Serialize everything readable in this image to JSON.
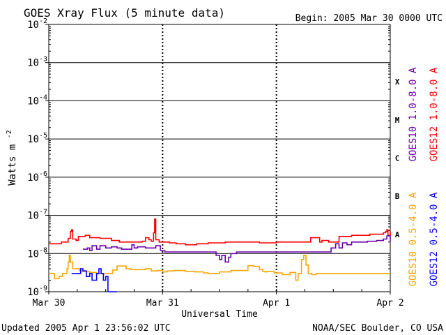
{
  "chart_data": {
    "type": "line",
    "title": "GOES Xray Flux (5 minute data)",
    "begin_label": "Begin:  2005 Mar 30 0000 UTC",
    "xlabel": "Universal Time",
    "ylabel": "Watts m",
    "ylabel_superscript": "-2",
    "x_ticks": [
      "Mar 30",
      "Mar 31",
      "Apr 1",
      "Apr 2"
    ],
    "x_unit": "day",
    "xlim": [
      0,
      3
    ],
    "y_scale": "log",
    "ylim": [
      1e-09,
      0.01
    ],
    "y_tick_mantissa": "10",
    "y_tick_exponents": [
      "-9",
      "-8",
      "-7",
      "-6",
      "-5",
      "-4",
      "-3",
      "-2"
    ],
    "flare_classes": [
      {
        "label": "X",
        "value": 0.0001
      },
      {
        "label": "M",
        "value": 1e-05
      },
      {
        "label": "C",
        "value": 1e-06
      },
      {
        "label": "B",
        "value": 1e-07
      },
      {
        "label": "A",
        "value": 1e-08
      }
    ],
    "grid": true,
    "legend_placement": "right",
    "series": [
      {
        "name": "GOES12 1.0-8.0 A",
        "color": "#ff0000",
        "points": [
          [
            0,
            1.8e-08
          ],
          [
            0.09,
            1.8e-08
          ],
          [
            0.11,
            2e-08
          ],
          [
            0.16,
            2e-08
          ],
          [
            0.17,
            2.5e-08
          ],
          [
            0.19,
            3.8e-08
          ],
          [
            0.2,
            4.2e-08
          ],
          [
            0.21,
            2.4e-08
          ],
          [
            0.24,
            2.2e-08
          ],
          [
            0.26,
            2.8e-08
          ],
          [
            0.3,
            2.8e-08
          ],
          [
            0.32,
            3e-08
          ],
          [
            0.36,
            2.6e-08
          ],
          [
            0.4,
            2.6e-08
          ],
          [
            0.45,
            2.5e-08
          ],
          [
            0.55,
            2.2e-08
          ],
          [
            0.62,
            2e-08
          ],
          [
            0.7,
            2e-08
          ],
          [
            0.78,
            2e-08
          ],
          [
            0.82,
            2.1e-08
          ],
          [
            0.85,
            2.6e-08
          ],
          [
            0.88,
            2.3e-08
          ],
          [
            0.9,
            2.1e-08
          ],
          [
            0.92,
            3.5e-08
          ],
          [
            0.93,
            8e-08
          ],
          [
            0.94,
            2.3e-08
          ],
          [
            0.97,
            2e-08
          ],
          [
            1.02,
            2e-08
          ],
          [
            1.06,
            1.9e-08
          ],
          [
            1.12,
            1.8e-08
          ],
          [
            1.2,
            1.7e-08
          ],
          [
            1.3,
            1.8e-08
          ],
          [
            1.4,
            1.9e-08
          ],
          [
            1.55,
            2e-08
          ],
          [
            1.7,
            2e-08
          ],
          [
            1.85,
            1.9e-08
          ],
          [
            2.0,
            2e-08
          ],
          [
            2.1,
            2e-08
          ],
          [
            2.2,
            2e-08
          ],
          [
            2.27,
            2e-08
          ],
          [
            2.3,
            2.6e-08
          ],
          [
            2.36,
            2.6e-08
          ],
          [
            2.38,
            2e-08
          ],
          [
            2.4,
            2.2e-08
          ],
          [
            2.44,
            2.2e-08
          ],
          [
            2.46,
            2e-08
          ],
          [
            2.55,
            2.8e-08
          ],
          [
            2.62,
            2.8e-08
          ],
          [
            2.66,
            3e-08
          ],
          [
            2.75,
            3e-08
          ],
          [
            2.82,
            3.2e-08
          ],
          [
            2.9,
            3.2e-08
          ],
          [
            2.94,
            3.5e-08
          ],
          [
            2.96,
            3.8e-08
          ],
          [
            2.97,
            4.2e-08
          ],
          [
            2.98,
            3e-08
          ],
          [
            3.0,
            3.8e-08
          ]
        ]
      },
      {
        "name": "GOES10 1.0-8.0 A",
        "color": "#6a00a8",
        "points": [
          [
            0.3,
            1.3e-08
          ],
          [
            0.34,
            1.4e-08
          ],
          [
            0.36,
            1.2e-08
          ],
          [
            0.38,
            1.6e-08
          ],
          [
            0.42,
            1.3e-08
          ],
          [
            0.45,
            1.6e-08
          ],
          [
            0.5,
            1.4e-08
          ],
          [
            0.55,
            1.5e-08
          ],
          [
            0.6,
            1.4e-08
          ],
          [
            0.64,
            1.3e-08
          ],
          [
            0.7,
            1.3e-08
          ],
          [
            0.73,
            1.7e-08
          ],
          [
            0.75,
            1.4e-08
          ],
          [
            0.78,
            1.5e-08
          ],
          [
            0.85,
            1.4e-08
          ],
          [
            0.9,
            1.4e-08
          ],
          [
            0.94,
            1.6e-08
          ],
          [
            0.98,
            1.2e-08
          ],
          [
            1.02,
            1.1e-08
          ],
          [
            1.1,
            1.1e-08
          ],
          [
            1.2,
            1.1e-08
          ],
          [
            1.3,
            1.1e-08
          ],
          [
            1.4,
            1.1e-08
          ],
          [
            1.47,
            9e-09
          ],
          [
            1.5,
            7e-09
          ],
          [
            1.52,
            9e-09
          ],
          [
            1.55,
            6e-09
          ],
          [
            1.58,
            8e-09
          ],
          [
            1.6,
            1e-08
          ],
          [
            1.65,
            1.1e-08
          ],
          [
            1.7,
            1.1e-08
          ],
          [
            1.8,
            1.1e-08
          ],
          [
            1.9,
            1.1e-08
          ],
          [
            2.0,
            1.1e-08
          ],
          [
            2.1,
            1.1e-08
          ],
          [
            2.2,
            1.1e-08
          ],
          [
            2.3,
            1.1e-08
          ],
          [
            2.36,
            1.1e-08
          ],
          [
            2.48,
            1.4e-08
          ],
          [
            2.52,
            1.8e-08
          ],
          [
            2.55,
            1.4e-08
          ],
          [
            2.58,
            1.9e-08
          ],
          [
            2.62,
            1.7e-08
          ],
          [
            2.66,
            2e-08
          ],
          [
            2.72,
            2e-08
          ],
          [
            2.8,
            2.1e-08
          ],
          [
            2.88,
            2.2e-08
          ],
          [
            2.94,
            2.4e-08
          ],
          [
            2.97,
            2.9e-08
          ],
          [
            3.0,
            2e-08
          ]
        ]
      },
      {
        "name": "GOES10 0.5-4.0 A",
        "color": "#ffa500",
        "points": [
          [
            0,
            3e-09
          ],
          [
            0.05,
            2.2e-09
          ],
          [
            0.09,
            2.5e-09
          ],
          [
            0.12,
            3e-09
          ],
          [
            0.16,
            4e-09
          ],
          [
            0.17,
            6e-09
          ],
          [
            0.18,
            9e-09
          ],
          [
            0.19,
            6e-09
          ],
          [
            0.21,
            4e-09
          ],
          [
            0.24,
            4e-09
          ],
          [
            0.27,
            3.5e-09
          ],
          [
            0.3,
            3.4e-09
          ],
          [
            0.36,
            3.2e-09
          ],
          [
            0.42,
            3e-09
          ],
          [
            0.48,
            3e-09
          ],
          [
            0.54,
            3e-09
          ],
          [
            0.56,
            3.7e-09
          ],
          [
            0.6,
            4.7e-09
          ],
          [
            0.66,
            4.7e-09
          ],
          [
            0.68,
            4e-09
          ],
          [
            0.72,
            3.8e-09
          ],
          [
            0.8,
            3.8e-09
          ],
          [
            0.85,
            4e-09
          ],
          [
            0.9,
            3.5e-09
          ],
          [
            0.96,
            3.6e-09
          ],
          [
            1.0,
            3.3e-09
          ],
          [
            1.04,
            3.5e-09
          ],
          [
            1.1,
            3.6e-09
          ],
          [
            1.2,
            3.4e-09
          ],
          [
            1.28,
            3.3e-09
          ],
          [
            1.36,
            3.1e-09
          ],
          [
            1.4,
            3e-09
          ],
          [
            1.5,
            3.3e-09
          ],
          [
            1.6,
            3.6e-09
          ],
          [
            1.7,
            3.6e-09
          ],
          [
            1.75,
            4.8e-09
          ],
          [
            1.8,
            4.6e-09
          ],
          [
            1.85,
            3.8e-09
          ],
          [
            1.88,
            3.4e-09
          ],
          [
            1.9,
            3.3e-09
          ],
          [
            1.92,
            3.4e-09
          ],
          [
            1.98,
            3.1e-09
          ],
          [
            2.05,
            2.8e-09
          ],
          [
            2.12,
            3.2e-09
          ],
          [
            2.17,
            2e-09
          ],
          [
            2.19,
            3e-09
          ],
          [
            2.22,
            7e-09
          ],
          [
            2.24,
            9e-09
          ],
          [
            2.26,
            5e-09
          ],
          [
            2.28,
            3e-09
          ],
          [
            2.31,
            2.8e-09
          ],
          [
            2.35,
            3e-09
          ],
          [
            2.5,
            3e-09
          ],
          [
            2.7,
            3e-09
          ],
          [
            2.85,
            3e-09
          ],
          [
            3.0,
            3e-09
          ]
        ]
      },
      {
        "name": "GOES12 0.5-4.0 A",
        "color": "#0000ff",
        "points": [
          [
            0.2,
            3e-09
          ],
          [
            0.28,
            4e-09
          ],
          [
            0.3,
            3.5e-09
          ],
          [
            0.33,
            2.5e-09
          ],
          [
            0.36,
            3e-09
          ],
          [
            0.38,
            2e-09
          ],
          [
            0.4,
            2e-09
          ],
          [
            0.42,
            3e-09
          ],
          [
            0.44,
            4e-09
          ],
          [
            0.46,
            3e-09
          ],
          [
            0.48,
            2e-09
          ],
          [
            0.5,
            2.5e-09
          ],
          [
            0.52,
            1e-09
          ],
          [
            0.54,
            1e-09
          ],
          [
            0.6,
            1e-09
          ]
        ]
      }
    ],
    "footer_left": "Updated 2005 Apr  1 23:56:02 UTC",
    "footer_right": "NOAA/SEC Boulder, CO USA"
  }
}
